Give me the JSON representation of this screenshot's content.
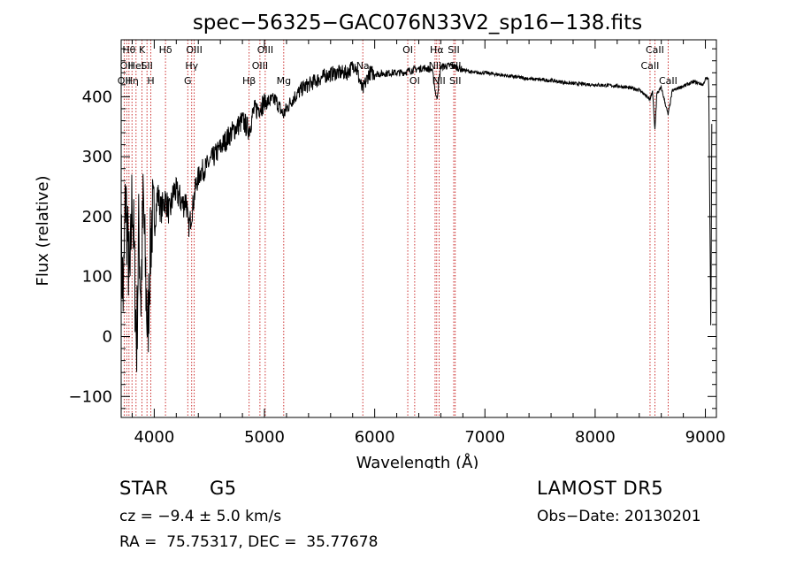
{
  "chart_data": {
    "type": "line",
    "title": "spec−56325−GAC076N33V2_sp16−138.fits",
    "xlabel": "Wavelength (Å)",
    "ylabel": "Flux (relative)",
    "xlim": [
      3700,
      9100
    ],
    "ylim": [
      -135,
      495
    ],
    "xticks": [
      4000,
      5000,
      6000,
      7000,
      8000,
      9000
    ],
    "yticks": [
      -100,
      0,
      100,
      200,
      300,
      400
    ],
    "ytick_labels": [
      "−100",
      "0",
      "100",
      "200",
      "300",
      "400"
    ],
    "line_color": "#000000",
    "marker_color": "#c00000",
    "spectrum_anchors": [
      [
        3700,
        150
      ],
      [
        3720,
        60
      ],
      [
        3740,
        240
      ],
      [
        3760,
        150
      ],
      [
        3780,
        80
      ],
      [
        3800,
        250
      ],
      [
        3820,
        120
      ],
      [
        3840,
        -20
      ],
      [
        3860,
        180
      ],
      [
        3880,
        60
      ],
      [
        3900,
        230
      ],
      [
        3920,
        110
      ],
      [
        3940,
        0
      ],
      [
        3960,
        120
      ],
      [
        3980,
        200
      ],
      [
        4000,
        180
      ],
      [
        4030,
        240
      ],
      [
        4060,
        210
      ],
      [
        4100,
        230
      ],
      [
        4140,
        205
      ],
      [
        4180,
        245
      ],
      [
        4220,
        235
      ],
      [
        4260,
        220
      ],
      [
        4290,
        230
      ],
      [
        4310,
        180
      ],
      [
        4340,
        205
      ],
      [
        4380,
        255
      ],
      [
        4420,
        275
      ],
      [
        4460,
        280
      ],
      [
        4500,
        290
      ],
      [
        4600,
        315
      ],
      [
        4700,
        340
      ],
      [
        4800,
        360
      ],
      [
        4860,
        345
      ],
      [
        4900,
        375
      ],
      [
        5000,
        390
      ],
      [
        5100,
        395
      ],
      [
        5170,
        370
      ],
      [
        5250,
        395
      ],
      [
        5350,
        415
      ],
      [
        5450,
        425
      ],
      [
        5550,
        435
      ],
      [
        5650,
        440
      ],
      [
        5750,
        440
      ],
      [
        5820,
        455
      ],
      [
        5890,
        410
      ],
      [
        5950,
        440
      ],
      [
        6050,
        438
      ],
      [
        6150,
        440
      ],
      [
        6250,
        440
      ],
      [
        6350,
        445
      ],
      [
        6450,
        448
      ],
      [
        6520,
        445
      ],
      [
        6563,
        395
      ],
      [
        6600,
        450
      ],
      [
        6700,
        452
      ],
      [
        6800,
        445
      ],
      [
        6900,
        440
      ],
      [
        7000,
        440
      ],
      [
        7200,
        435
      ],
      [
        7400,
        430
      ],
      [
        7600,
        427
      ],
      [
        7800,
        422
      ],
      [
        8000,
        420
      ],
      [
        8200,
        418
      ],
      [
        8400,
        412
      ],
      [
        8498,
        395
      ],
      [
        8520,
        410
      ],
      [
        8542,
        345
      ],
      [
        8560,
        405
      ],
      [
        8600,
        415
      ],
      [
        8662,
        370
      ],
      [
        8700,
        410
      ],
      [
        8800,
        418
      ],
      [
        8900,
        425
      ],
      [
        8980,
        420
      ],
      [
        9000,
        430
      ],
      [
        9030,
        430
      ],
      [
        9050,
        0
      ],
      [
        9060,
        445
      ]
    ],
    "lines": [
      {
        "wavelength": 3727,
        "labels": [
          "OII"
        ],
        "rows": [
          3
        ]
      },
      {
        "wavelength": 3750,
        "labels": [
          "OII"
        ],
        "rows": [
          2
        ]
      },
      {
        "wavelength": 3771,
        "labels": [
          "Hθ"
        ],
        "rows": [
          1
        ]
      },
      {
        "wavelength": 3798,
        "labels": [
          "Hη"
        ],
        "rows": [
          3
        ]
      },
      {
        "wavelength": 3835,
        "labels": [
          "HeI"
        ],
        "rows": [
          2
        ]
      },
      {
        "wavelength": 3889,
        "labels": [
          "K"
        ],
        "rows": [
          1
        ]
      },
      {
        "wavelength": 3934,
        "labels": [
          "SII"
        ],
        "rows": [
          2
        ]
      },
      {
        "wavelength": 3969,
        "labels": [
          "H"
        ],
        "rows": [
          3
        ]
      },
      {
        "wavelength": 4102,
        "labels": [
          "Hδ"
        ],
        "rows": [
          1
        ]
      },
      {
        "wavelength": 4304,
        "labels": [
          "G"
        ],
        "rows": [
          3
        ]
      },
      {
        "wavelength": 4340,
        "labels": [
          "Hγ"
        ],
        "rows": [
          2
        ]
      },
      {
        "wavelength": 4363,
        "labels": [
          "OIII"
        ],
        "rows": [
          1
        ]
      },
      {
        "wavelength": 4861,
        "labels": [
          "Hβ"
        ],
        "rows": [
          3
        ]
      },
      {
        "wavelength": 4959,
        "labels": [
          "OIII"
        ],
        "rows": [
          2
        ]
      },
      {
        "wavelength": 5007,
        "labels": [
          "OIII"
        ],
        "rows": [
          1
        ]
      },
      {
        "wavelength": 5175,
        "labels": [
          "Mg"
        ],
        "rows": [
          3
        ]
      },
      {
        "wavelength": 5892,
        "labels": [
          "Na"
        ],
        "rows": [
          2
        ]
      },
      {
        "wavelength": 6300,
        "labels": [
          "OI"
        ],
        "rows": [
          1
        ]
      },
      {
        "wavelength": 6363,
        "labels": [
          "OI"
        ],
        "rows": [
          3
        ]
      },
      {
        "wavelength": 6548,
        "labels": [
          "NII"
        ],
        "rows": [
          2
        ]
      },
      {
        "wavelength": 6563,
        "labels": [
          "Hα"
        ],
        "rows": [
          1
        ]
      },
      {
        "wavelength": 6584,
        "labels": [
          "NII"
        ],
        "rows": [
          3
        ]
      },
      {
        "wavelength": 6717,
        "labels": [
          "SII"
        ],
        "rows": [
          1
        ]
      },
      {
        "wavelength": 6731,
        "labels": [
          "SII"
        ],
        "rows": [
          2,
          3
        ]
      },
      {
        "wavelength": 8498,
        "labels": [
          "CaII"
        ],
        "rows": [
          2
        ]
      },
      {
        "wavelength": 8542,
        "labels": [
          "CaII"
        ],
        "rows": [
          1
        ]
      },
      {
        "wavelength": 8662,
        "labels": [
          "CaII"
        ],
        "rows": [
          3
        ]
      }
    ]
  },
  "info": {
    "class": "STAR",
    "subclass": "G5",
    "survey": "LAMOST DR5",
    "cz": "cz = −9.4 ± 5.0 km/s",
    "obs_date": "Obs−Date: 20130201",
    "coords": "RA =  75.75317, DEC =  35.77678"
  }
}
